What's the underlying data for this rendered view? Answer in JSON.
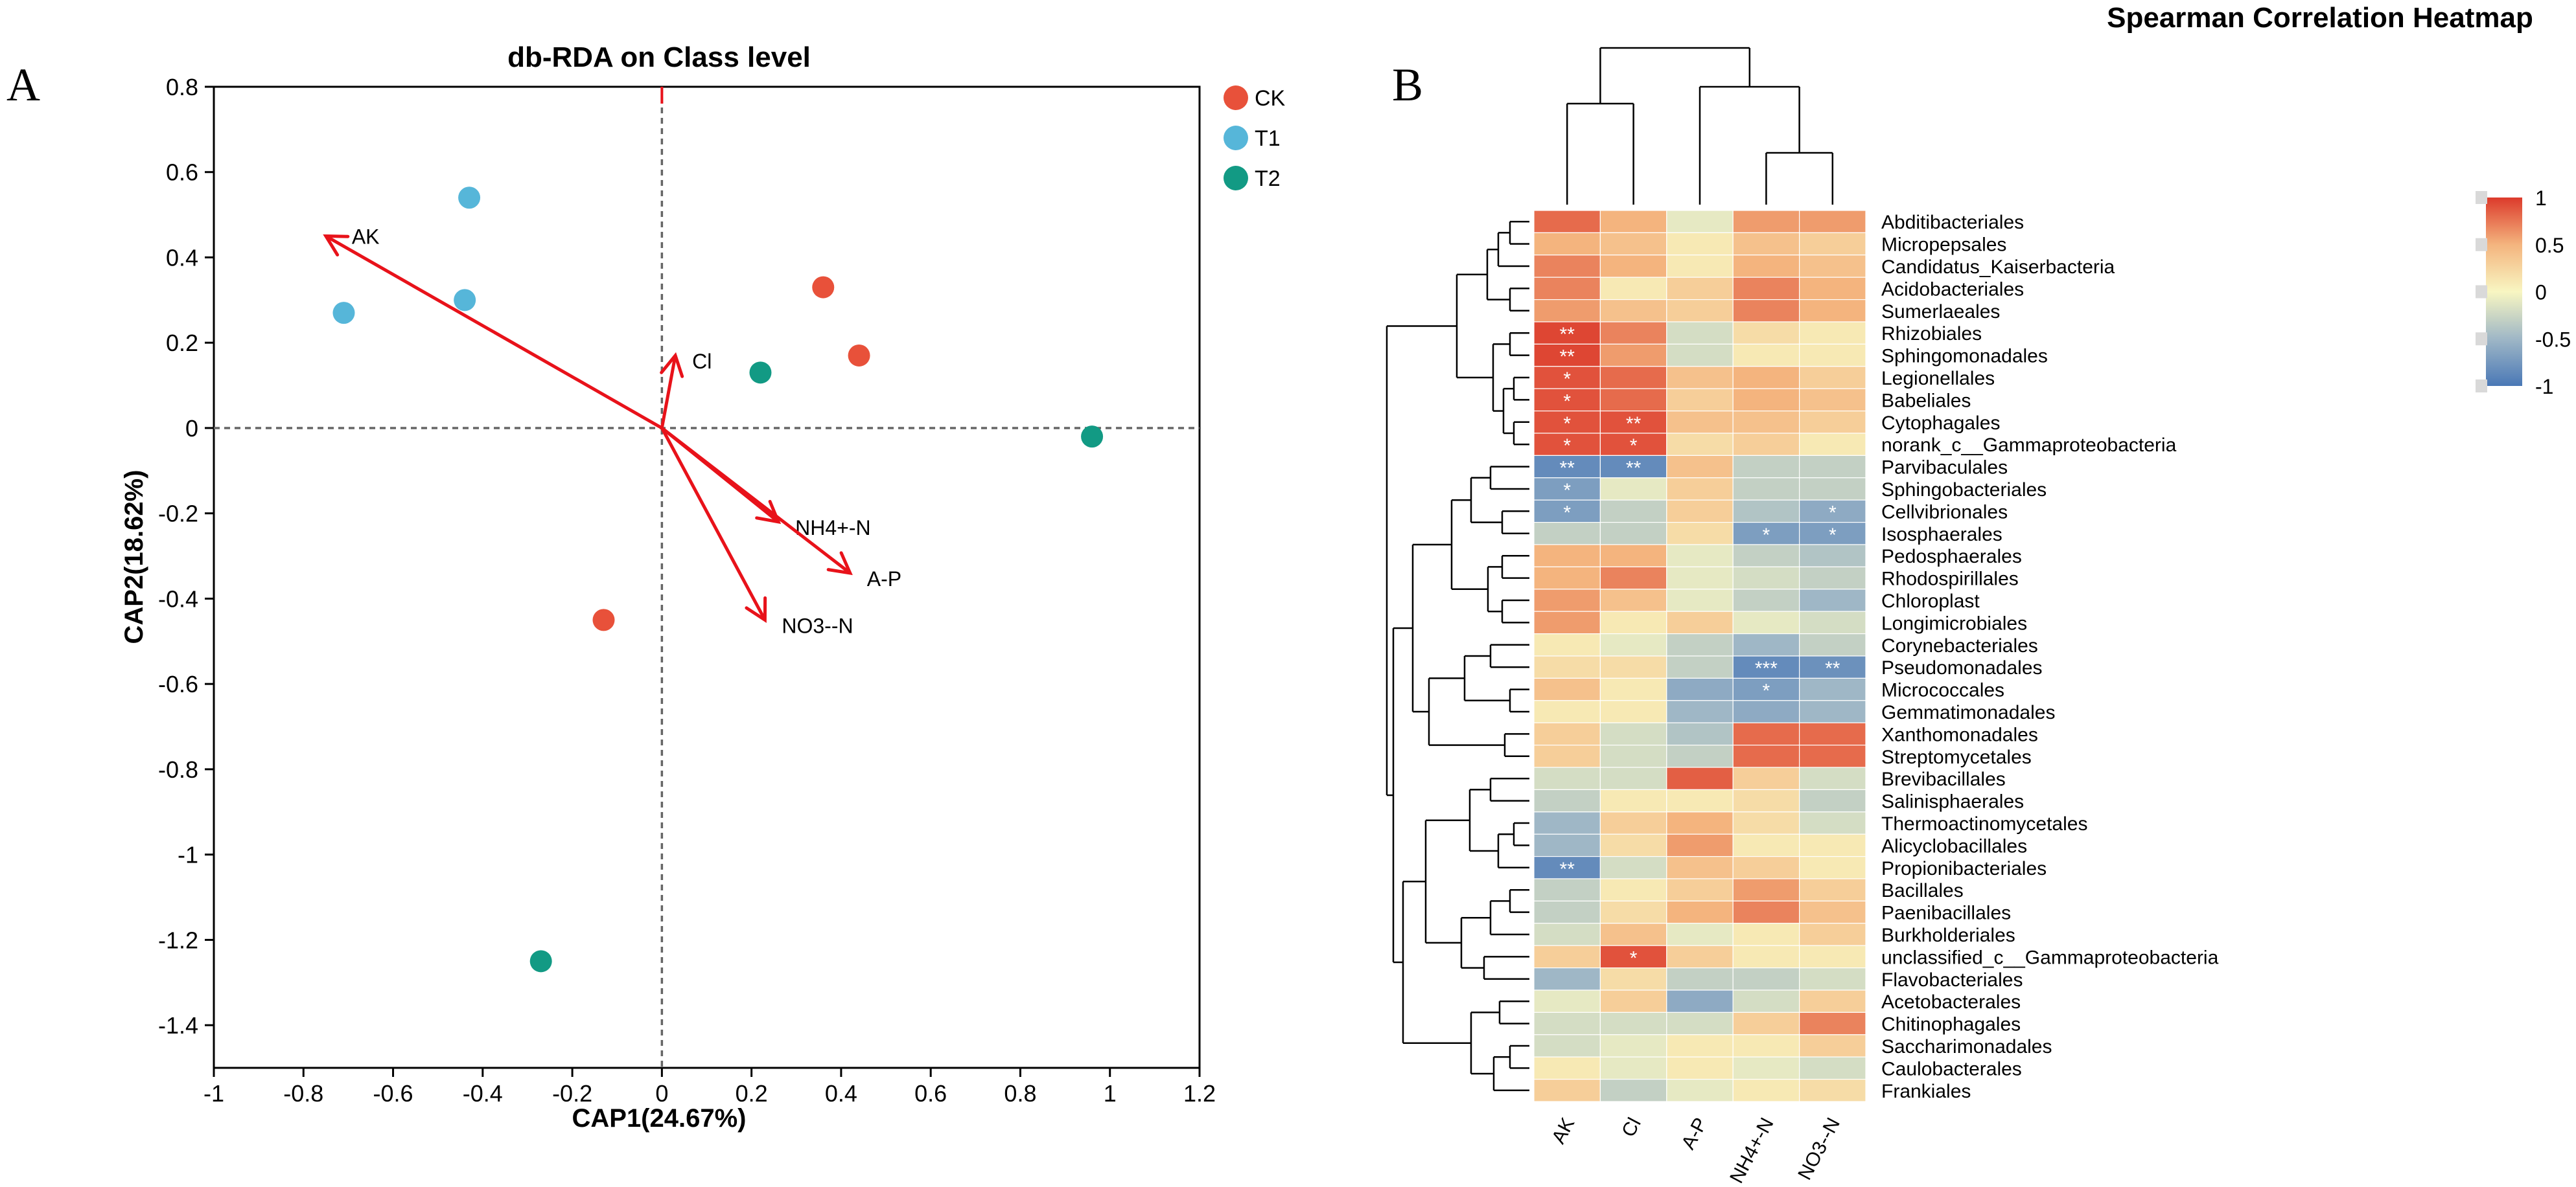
{
  "panel_labels": {
    "a": "A",
    "b": "B"
  },
  "chart_data": [
    {
      "type": "scatter",
      "title": "db-RDA on Class level",
      "xlabel": "CAP1(24.67%)",
      "ylabel": "CAP2(18.62%)",
      "xlim": [
        -1,
        1.2
      ],
      "ylim": [
        -1.5,
        0.8
      ],
      "xticks": [
        -1,
        -0.8,
        -0.6,
        -0.4,
        -0.2,
        0,
        0.2,
        0.4,
        0.6,
        0.8,
        1,
        1.2
      ],
      "xtick_labels": [
        "-1",
        "-0.8",
        "-0.6",
        "-0.4",
        "-0.2",
        "0",
        "0.2",
        "0.4",
        "0.6",
        "0.8",
        "1",
        "1.2"
      ],
      "yticks": [
        0.8,
        0.6,
        0.4,
        0.2,
        0,
        -0.2,
        -0.4,
        -0.6,
        -0.8,
        -1,
        -1.2,
        -1.4
      ],
      "ytick_labels": [
        "0.8",
        "0.6",
        "0.4",
        "0.2",
        "0",
        "-0.2",
        "-0.4",
        "-0.6",
        "-0.8",
        "-1",
        "-1.2",
        "-1.4"
      ],
      "legend": [
        {
          "name": "CK",
          "color": "#e8513a"
        },
        {
          "name": "T1",
          "color": "#56b6d9"
        },
        {
          "name": "T2",
          "color": "#129a84"
        }
      ],
      "points": [
        {
          "group": "CK",
          "x": 0.36,
          "y": 0.33
        },
        {
          "group": "CK",
          "x": 0.44,
          "y": 0.17
        },
        {
          "group": "CK",
          "x": -0.13,
          "y": -0.45
        },
        {
          "group": "T1",
          "x": -0.43,
          "y": 0.54
        },
        {
          "group": "T1",
          "x": -0.71,
          "y": 0.27
        },
        {
          "group": "T1",
          "x": -0.44,
          "y": 0.3
        },
        {
          "group": "T2",
          "x": 0.22,
          "y": 0.13
        },
        {
          "group": "T2",
          "x": 0.96,
          "y": -0.02
        },
        {
          "group": "T2",
          "x": -0.27,
          "y": -1.25
        }
      ],
      "arrows": [
        {
          "label": "AK",
          "x": -0.75,
          "y": 0.45
        },
        {
          "label": "Cl",
          "x": 0.03,
          "y": 0.17
        },
        {
          "label": "NH4+-N",
          "x": 0.26,
          "y": -0.22
        },
        {
          "label": "A-P",
          "x": 0.42,
          "y": -0.34
        },
        {
          "label": "NO3--N",
          "x": 0.23,
          "y": -0.45
        }
      ],
      "arrow_color": "#e8121a",
      "reference_lines": {
        "x": 0,
        "y": 0
      }
    },
    {
      "type": "heatmap",
      "title": "Spearman Correlation Heatmap",
      "columns": [
        "AK",
        "Cl",
        "A-P",
        "NH4+-N",
        "NO3--N"
      ],
      "rows": [
        "Abditibacteriales",
        "Micropepsales",
        "Candidatus_Kaiserbacteria",
        "Acidobacteriales",
        "Sumerlaeales",
        "Rhizobiales",
        "Sphingomonadales",
        "Legionellales",
        "Babeliales",
        "Cytophagales",
        "norank_c__Gammaproteobacteria",
        "Parvibaculales",
        "Sphingobacteriales",
        "Cellvibrionales",
        "Isosphaerales",
        "Pedosphaerales",
        "Rhodospirillales",
        "Chloroplast",
        "Longimicrobiales",
        "Corynebacteriales",
        "Pseudomonadales",
        "Micrococcales",
        "Gemmatimonadales",
        "Xanthomonadales",
        "Streptomycetales",
        "Brevibacillales",
        "Salinisphaerales",
        "Thermoactinomycetales",
        "Alicyclobacillales",
        "Propionibacteriales",
        "Bacillales",
        "Paenibacillales",
        "Burkholderiales",
        "unclassified_c__Gammaproteobacteria",
        "Flavobacteriales",
        "Acetobacterales",
        "Chitinophagales",
        "Saccharimonadales",
        "Caulobacterales",
        "Frankiales"
      ],
      "values": [
        [
          0.8,
          0.5,
          -0.1,
          0.6,
          0.6
        ],
        [
          0.5,
          0.4,
          0.1,
          0.4,
          0.3
        ],
        [
          0.7,
          0.5,
          0.1,
          0.5,
          0.4
        ],
        [
          0.7,
          0.1,
          0.3,
          0.7,
          0.5
        ],
        [
          0.6,
          0.4,
          0.3,
          0.7,
          0.5
        ],
        [
          0.95,
          0.7,
          -0.2,
          0.2,
          0.1
        ],
        [
          0.95,
          0.6,
          -0.2,
          0.1,
          0.1
        ],
        [
          0.9,
          0.8,
          0.4,
          0.5,
          0.3
        ],
        [
          0.9,
          0.8,
          0.3,
          0.5,
          0.4
        ],
        [
          0.9,
          0.9,
          0.4,
          0.4,
          0.3
        ],
        [
          0.9,
          0.9,
          0.2,
          0.3,
          0.1
        ],
        [
          -0.85,
          -0.85,
          0.4,
          -0.3,
          -0.3
        ],
        [
          -0.7,
          -0.1,
          0.3,
          -0.3,
          -0.3
        ],
        [
          -0.7,
          -0.3,
          0.3,
          -0.4,
          -0.6
        ],
        [
          -0.3,
          -0.3,
          0.2,
          -0.7,
          -0.7
        ],
        [
          0.5,
          0.5,
          -0.1,
          -0.3,
          -0.4
        ],
        [
          0.5,
          0.7,
          -0.1,
          -0.2,
          -0.3
        ],
        [
          0.6,
          0.4,
          -0.1,
          -0.3,
          -0.5
        ],
        [
          0.6,
          0.1,
          0.3,
          -0.1,
          -0.2
        ],
        [
          0.1,
          -0.1,
          -0.3,
          -0.5,
          -0.3
        ],
        [
          0.2,
          0.2,
          -0.3,
          -0.85,
          -0.8
        ],
        [
          0.4,
          0.1,
          -0.6,
          -0.7,
          -0.5
        ],
        [
          0.1,
          0.1,
          -0.5,
          -0.6,
          -0.5
        ],
        [
          0.3,
          -0.2,
          -0.4,
          0.8,
          0.8
        ],
        [
          0.3,
          -0.2,
          -0.3,
          0.8,
          0.8
        ],
        [
          -0.2,
          -0.2,
          0.85,
          0.3,
          -0.2
        ],
        [
          -0.3,
          0.1,
          0.1,
          0.2,
          -0.3
        ],
        [
          -0.5,
          0.3,
          0.5,
          0.2,
          -0.2
        ],
        [
          -0.5,
          0.2,
          0.6,
          0.1,
          0.1
        ],
        [
          -0.85,
          -0.2,
          0.4,
          0.3,
          0.1
        ],
        [
          -0.3,
          0.1,
          0.3,
          0.6,
          0.3
        ],
        [
          -0.3,
          0.2,
          0.5,
          0.7,
          0.4
        ],
        [
          -0.2,
          0.4,
          -0.1,
          0.1,
          0.3
        ],
        [
          0.3,
          0.9,
          0.3,
          0.1,
          0.1
        ],
        [
          -0.5,
          0.2,
          -0.3,
          -0.3,
          -0.2
        ],
        [
          -0.1,
          0.3,
          -0.6,
          -0.2,
          0.3
        ],
        [
          -0.2,
          -0.2,
          -0.2,
          0.3,
          0.7
        ],
        [
          -0.2,
          -0.1,
          0.1,
          0.1,
          0.3
        ],
        [
          0.1,
          -0.1,
          0.1,
          -0.1,
          -0.2
        ],
        [
          0.3,
          -0.3,
          -0.1,
          0.1,
          0.2
        ]
      ],
      "annotations": [
        [
          "",
          "",
          "",
          "",
          ""
        ],
        [
          "",
          "",
          "",
          "",
          ""
        ],
        [
          "",
          "",
          "",
          "",
          ""
        ],
        [
          "",
          "",
          "",
          "",
          ""
        ],
        [
          "",
          "",
          "",
          "",
          ""
        ],
        [
          "**",
          "",
          "",
          "",
          ""
        ],
        [
          "**",
          "",
          "",
          "",
          ""
        ],
        [
          "*",
          "",
          "",
          "",
          ""
        ],
        [
          "*",
          "",
          "",
          "",
          ""
        ],
        [
          "*",
          "**",
          "",
          "",
          ""
        ],
        [
          "*",
          "*",
          "",
          "",
          ""
        ],
        [
          "**",
          "**",
          "",
          "",
          ""
        ],
        [
          "*",
          "",
          "",
          "",
          ""
        ],
        [
          "*",
          "",
          "",
          "",
          "*"
        ],
        [
          "",
          "",
          "",
          "*",
          "*"
        ],
        [
          "",
          "",
          "",
          "",
          ""
        ],
        [
          "",
          "",
          "",
          "",
          ""
        ],
        [
          "",
          "",
          "",
          "",
          ""
        ],
        [
          "",
          "",
          "",
          "",
          ""
        ],
        [
          "",
          "",
          "",
          "",
          ""
        ],
        [
          "",
          "",
          "",
          "***",
          "**"
        ],
        [
          "",
          "",
          "",
          "*",
          ""
        ],
        [
          "",
          "",
          "",
          "",
          ""
        ],
        [
          "",
          "",
          "",
          "",
          ""
        ],
        [
          "",
          "",
          "",
          "",
          ""
        ],
        [
          "",
          "",
          "",
          "",
          ""
        ],
        [
          "",
          "",
          "",
          "",
          ""
        ],
        [
          "",
          "",
          "",
          "",
          ""
        ],
        [
          "",
          "",
          "",
          "",
          ""
        ],
        [
          "**",
          "",
          "",
          "",
          ""
        ],
        [
          "",
          "",
          "",
          "",
          ""
        ],
        [
          "",
          "",
          "",
          "",
          ""
        ],
        [
          "",
          "",
          "",
          "",
          ""
        ],
        [
          "",
          "*",
          "",
          "",
          ""
        ],
        [
          "",
          "",
          "",
          "",
          ""
        ],
        [
          "",
          "",
          "",
          "",
          ""
        ],
        [
          "",
          "",
          "",
          "",
          ""
        ],
        [
          "",
          "",
          "",
          "",
          ""
        ],
        [
          "",
          "",
          "",
          "",
          ""
        ],
        [
          "",
          "",
          "",
          "",
          ""
        ]
      ],
      "colorbar": {
        "range": [
          -1,
          1
        ],
        "ticks": [
          1,
          0.5,
          0,
          -0.5,
          -1
        ],
        "tick_labels": [
          "1",
          "0.5",
          "0",
          "-0.5",
          "-1"
        ],
        "colors": [
          "#4a78b6",
          "#9fb7c6",
          "#f8f6c2",
          "#f4b47e",
          "#dc3a2b"
        ]
      }
    }
  ]
}
